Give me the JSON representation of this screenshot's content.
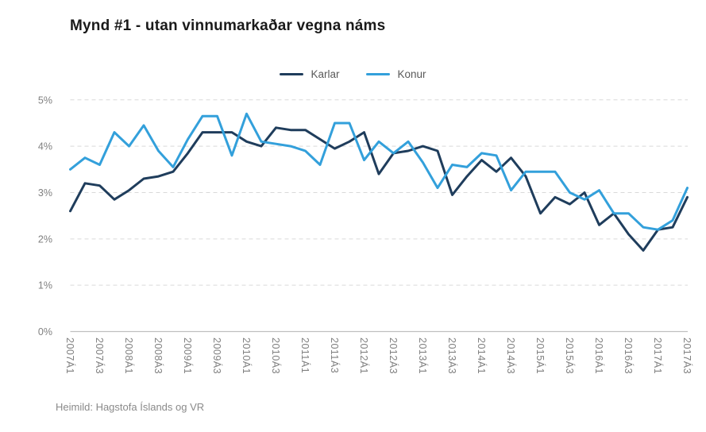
{
  "title": "Mynd #1 - utan vinnumarkaðar vegna náms",
  "footer": "Heimild: Hagstofa Íslands og VR",
  "legend": [
    {
      "label": "Karlar",
      "color": "#1f3d5c"
    },
    {
      "label": "Konur",
      "color": "#33a0db"
    }
  ],
  "colors": {
    "grid": "#d9d9d9",
    "axis_line": "#bfbfbf",
    "tick_text": "#808080",
    "title_text": "#1a1a1a"
  },
  "chart_data": {
    "type": "line",
    "title": "Mynd #1 - utan vinnumarkaðar vegna náms",
    "xlabel": "",
    "ylabel": "",
    "ylim": [
      0,
      5
    ],
    "grid": "horizontal-dashed",
    "legend_position": "top-center",
    "y_tick_labels": [
      "0%",
      "1%",
      "2%",
      "3%",
      "4%",
      "5%"
    ],
    "x": [
      "2007Á1",
      "2007Á2",
      "2007Á3",
      "2007Á4",
      "2008Á1",
      "2008Á2",
      "2008Á3",
      "2008Á4",
      "2009Á1",
      "2009Á2",
      "2009Á3",
      "2009Á4",
      "2010Á1",
      "2010Á2",
      "2010Á3",
      "2010Á4",
      "2011Á1",
      "2011Á2",
      "2011Á3",
      "2011Á4",
      "2012Á1",
      "2012Á2",
      "2012Á3",
      "2012Á4",
      "2013Á1",
      "2013Á2",
      "2013Á3",
      "2013Á4",
      "2014Á1",
      "2014Á2",
      "2014Á3",
      "2014Á4",
      "2015Á1",
      "2015Á2",
      "2015Á3",
      "2015Á4",
      "2016Á1",
      "2016Á2",
      "2016Á3",
      "2016Á4",
      "2017Á1",
      "2017Á2",
      "2017Á3"
    ],
    "x_tick_labels": [
      "2007Á1",
      "2007Á3",
      "2008Á1",
      "2008Á3",
      "2009Á1",
      "2009Á3",
      "2010Á1",
      "2010Á3",
      "2011Á1",
      "2011Á3",
      "2012Á1",
      "2012Á3",
      "2013Á1",
      "2013Á3",
      "2014Á1",
      "2014Á3",
      "2015Á1",
      "2015Á3",
      "2016Á1",
      "2016Á3",
      "2017Á1",
      "2017Á3"
    ],
    "x_tick_every": 2,
    "series": [
      {
        "name": "Karlar",
        "color": "#1f3d5c",
        "values": [
          2.6,
          3.2,
          3.15,
          2.85,
          3.05,
          3.3,
          3.35,
          3.45,
          3.85,
          4.3,
          4.3,
          4.3,
          4.1,
          4.0,
          4.4,
          4.35,
          4.35,
          4.15,
          3.95,
          4.1,
          4.3,
          3.4,
          3.85,
          3.9,
          4.0,
          3.9,
          2.95,
          3.35,
          3.7,
          3.45,
          3.75,
          3.35,
          2.55,
          2.9,
          2.75,
          3.0,
          2.3,
          2.55,
          2.1,
          1.75,
          2.2,
          2.25,
          2.9
        ]
      },
      {
        "name": "Konur",
        "color": "#33a0db",
        "values": [
          3.5,
          3.75,
          3.6,
          4.3,
          4.0,
          4.45,
          3.9,
          3.55,
          4.15,
          4.65,
          4.65,
          3.8,
          4.7,
          4.1,
          4.05,
          4.0,
          3.9,
          3.6,
          4.5,
          4.5,
          3.7,
          4.1,
          3.85,
          4.1,
          3.65,
          3.1,
          3.6,
          3.55,
          3.85,
          3.8,
          3.05,
          3.45,
          3.45,
          3.45,
          3.0,
          2.85,
          3.05,
          2.55,
          2.55,
          2.25,
          2.2,
          2.4,
          3.1
        ]
      }
    ]
  }
}
